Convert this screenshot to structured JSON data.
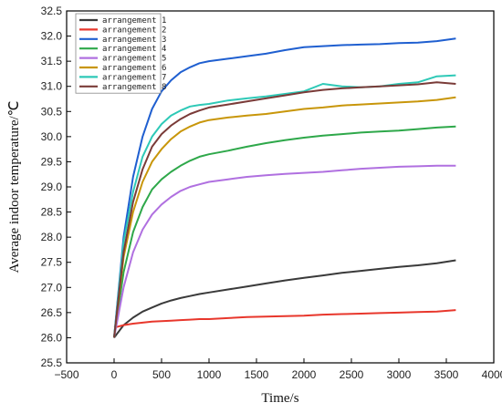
{
  "chart_data": {
    "type": "line",
    "title": "",
    "xlabel": "Time/s",
    "ylabel": "Average indoor temperature/℃",
    "xlim": [
      -500,
      4000
    ],
    "ylim": [
      25.5,
      32.5
    ],
    "x_ticks": [
      -500,
      0,
      500,
      1000,
      1500,
      2000,
      2500,
      3000,
      3500,
      4000
    ],
    "x_tick_labels": [
      "−500",
      "0",
      "500",
      "1000",
      "1500",
      "2000",
      "2500",
      "3000",
      "3500",
      "4000"
    ],
    "y_ticks": [
      25.5,
      26.0,
      26.5,
      27.0,
      27.5,
      28.0,
      28.5,
      29.0,
      29.5,
      30.0,
      30.5,
      31.0,
      31.5,
      32.0,
      32.5
    ],
    "y_tick_labels": [
      "25.5",
      "26.0",
      "26.5",
      "27.0",
      "27.5",
      "28.0",
      "28.5",
      "29.0",
      "29.5",
      "30.0",
      "30.5",
      "31.0",
      "31.5",
      "32.0",
      "32.5"
    ],
    "grid": false,
    "legend_position": "top-left",
    "x": [
      0,
      100,
      200,
      300,
      400,
      500,
      600,
      700,
      800,
      900,
      1000,
      1200,
      1400,
      1600,
      1800,
      2000,
      2200,
      2400,
      2600,
      2800,
      3000,
      3200,
      3400,
      3600
    ],
    "series": [
      {
        "name": "arrangement 1",
        "color": "#3a3a3a",
        "values": [
          26.0,
          26.25,
          26.4,
          26.52,
          26.6,
          26.68,
          26.74,
          26.79,
          26.83,
          26.87,
          26.9,
          26.96,
          27.02,
          27.08,
          27.14,
          27.19,
          27.24,
          27.29,
          27.33,
          27.37,
          27.41,
          27.44,
          27.48,
          27.54
        ]
      },
      {
        "name": "arrangement 2",
        "color": "#e8372c",
        "values": [
          26.2,
          26.25,
          26.28,
          26.3,
          26.32,
          26.33,
          26.34,
          26.35,
          26.36,
          26.37,
          26.37,
          26.39,
          26.41,
          26.42,
          26.43,
          26.44,
          26.46,
          26.47,
          26.48,
          26.49,
          26.5,
          26.51,
          26.52,
          26.55
        ]
      },
      {
        "name": "arrangement 3",
        "color": "#1f5fd0",
        "values": [
          26.0,
          28.0,
          29.2,
          30.0,
          30.55,
          30.9,
          31.12,
          31.28,
          31.38,
          31.46,
          31.5,
          31.55,
          31.6,
          31.65,
          31.72,
          31.78,
          31.8,
          31.82,
          31.83,
          31.84,
          31.86,
          31.87,
          31.9,
          31.95
        ]
      },
      {
        "name": "arrangement 4",
        "color": "#2ea84a",
        "values": [
          26.0,
          27.3,
          28.1,
          28.6,
          28.95,
          29.15,
          29.3,
          29.42,
          29.52,
          29.6,
          29.65,
          29.72,
          29.8,
          29.87,
          29.93,
          29.98,
          30.02,
          30.05,
          30.08,
          30.1,
          30.12,
          30.15,
          30.18,
          30.2
        ]
      },
      {
        "name": "arrangement 5",
        "color": "#b070e0",
        "values": [
          26.0,
          27.0,
          27.7,
          28.15,
          28.45,
          28.65,
          28.8,
          28.92,
          29.0,
          29.05,
          29.1,
          29.15,
          29.2,
          29.23,
          29.26,
          29.28,
          29.3,
          29.33,
          29.36,
          29.38,
          29.4,
          29.41,
          29.42,
          29.42
        ]
      },
      {
        "name": "arrangement 6",
        "color": "#c8960a",
        "values": [
          26.0,
          27.6,
          28.5,
          29.1,
          29.5,
          29.75,
          29.95,
          30.1,
          30.2,
          30.28,
          30.33,
          30.38,
          30.42,
          30.45,
          30.5,
          30.55,
          30.58,
          30.62,
          30.64,
          30.66,
          30.68,
          30.7,
          30.73,
          30.78
        ]
      },
      {
        "name": "arrangement 7",
        "color": "#2ec9b7",
        "values": [
          26.0,
          27.9,
          28.9,
          29.6,
          30.0,
          30.25,
          30.42,
          30.52,
          30.6,
          30.63,
          30.65,
          30.72,
          30.76,
          30.8,
          30.85,
          30.9,
          31.05,
          31.0,
          30.98,
          31.0,
          31.05,
          31.08,
          31.2,
          31.22
        ]
      },
      {
        "name": "arrangement 8",
        "color": "#7a3b38",
        "values": [
          26.0,
          27.7,
          28.7,
          29.35,
          29.8,
          30.05,
          30.22,
          30.35,
          30.45,
          30.52,
          30.58,
          30.64,
          30.7,
          30.76,
          30.82,
          30.88,
          30.93,
          30.96,
          30.98,
          31.0,
          31.02,
          31.04,
          31.08,
          31.05
        ]
      }
    ]
  }
}
